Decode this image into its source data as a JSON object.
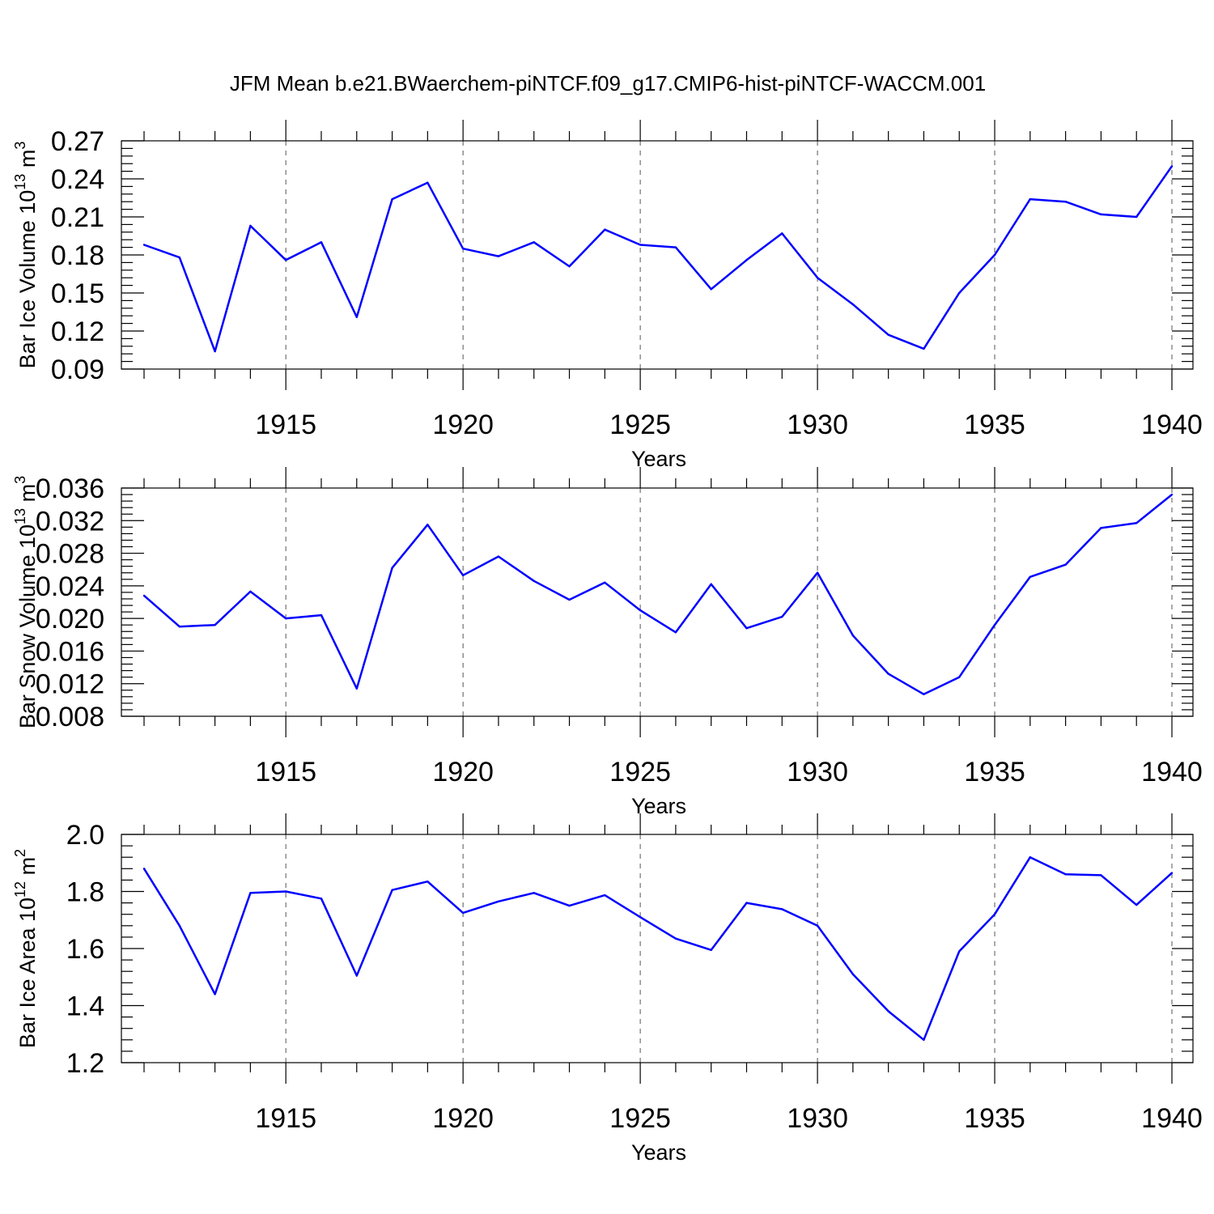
{
  "title": "JFM Mean b.e21.BWaerchem-piNTCF.f09_g17.CMIP6-hist-piNTCF-WACCM.001",
  "colors": {
    "line": "#0000ff",
    "frame": "#000000",
    "grid": "#555555"
  },
  "chart_data": [
    {
      "type": "line",
      "ylabel": "Bar Ice Volume 10",
      "ylabel_exp": "13",
      "ylabel_unit": "m",
      "ylabel_unit_exp": "3",
      "xlabel": "Years",
      "xlim": [
        1911,
        1940
      ],
      "ylim": [
        0.09,
        0.27
      ],
      "yticks": [
        "0.09",
        "0.12",
        "0.15",
        "0.18",
        "0.21",
        "0.24",
        "0.27"
      ],
      "xticks": [
        "1915",
        "1920",
        "1925",
        "1930",
        "1935",
        "1940"
      ],
      "x": [
        1911,
        1912,
        1913,
        1914,
        1915,
        1916,
        1917,
        1918,
        1919,
        1920,
        1921,
        1922,
        1923,
        1924,
        1925,
        1926,
        1927,
        1928,
        1929,
        1930,
        1931,
        1932,
        1933,
        1934,
        1935,
        1936,
        1937,
        1938,
        1939,
        1940
      ],
      "values": [
        0.188,
        0.178,
        0.104,
        0.203,
        0.176,
        0.19,
        0.131,
        0.224,
        0.237,
        0.185,
        0.179,
        0.19,
        0.171,
        0.2,
        0.188,
        0.186,
        0.153,
        0.176,
        0.197,
        0.162,
        0.141,
        0.117,
        0.106,
        0.15,
        0.18,
        0.224,
        0.222,
        0.212,
        0.21,
        0.25
      ]
    },
    {
      "type": "line",
      "ylabel": "Bar Snow Volume 10",
      "ylabel_exp": "13",
      "ylabel_unit": "m",
      "ylabel_unit_exp": "3",
      "xlabel": "Years",
      "xlim": [
        1911,
        1940
      ],
      "ylim": [
        0.008,
        0.036
      ],
      "yticks": [
        "0.008",
        "0.012",
        "0.016",
        "0.020",
        "0.024",
        "0.028",
        "0.032",
        "0.036"
      ],
      "xticks": [
        "1915",
        "1920",
        "1925",
        "1930",
        "1935",
        "1940"
      ],
      "x": [
        1911,
        1912,
        1913,
        1914,
        1915,
        1916,
        1917,
        1918,
        1919,
        1920,
        1921,
        1922,
        1923,
        1924,
        1925,
        1926,
        1927,
        1928,
        1929,
        1930,
        1931,
        1932,
        1933,
        1934,
        1935,
        1936,
        1937,
        1938,
        1939,
        1940
      ],
      "values": [
        0.0228,
        0.019,
        0.0192,
        0.0233,
        0.02,
        0.0204,
        0.0114,
        0.0262,
        0.0315,
        0.0253,
        0.0276,
        0.0246,
        0.0223,
        0.0244,
        0.021,
        0.0183,
        0.0242,
        0.0188,
        0.0202,
        0.0256,
        0.0179,
        0.0132,
        0.0107,
        0.0128,
        0.0192,
        0.0251,
        0.0266,
        0.0311,
        0.0317,
        0.0352
      ]
    },
    {
      "type": "line",
      "ylabel": "Bar Ice Area 10",
      "ylabel_exp": "12",
      "ylabel_unit": "m",
      "ylabel_unit_exp": "2",
      "xlabel": "Years",
      "xlim": [
        1911,
        1940
      ],
      "ylim": [
        1.2,
        2.0
      ],
      "yticks": [
        "1.2",
        "1.4",
        "1.6",
        "1.8",
        "2.0"
      ],
      "xticks": [
        "1915",
        "1920",
        "1925",
        "1930",
        "1935",
        "1940"
      ],
      "x": [
        1911,
        1912,
        1913,
        1914,
        1915,
        1916,
        1917,
        1918,
        1919,
        1920,
        1921,
        1922,
        1923,
        1924,
        1925,
        1926,
        1927,
        1928,
        1929,
        1930,
        1931,
        1932,
        1933,
        1934,
        1935,
        1936,
        1937,
        1938,
        1939,
        1940
      ],
      "values": [
        1.88,
        1.68,
        1.44,
        1.795,
        1.8,
        1.775,
        1.505,
        1.805,
        1.835,
        1.725,
        1.765,
        1.795,
        1.75,
        1.787,
        1.71,
        1.635,
        1.595,
        1.76,
        1.738,
        1.68,
        1.51,
        1.38,
        1.28,
        1.59,
        1.72,
        1.92,
        1.86,
        1.857,
        1.753,
        1.865
      ]
    }
  ]
}
